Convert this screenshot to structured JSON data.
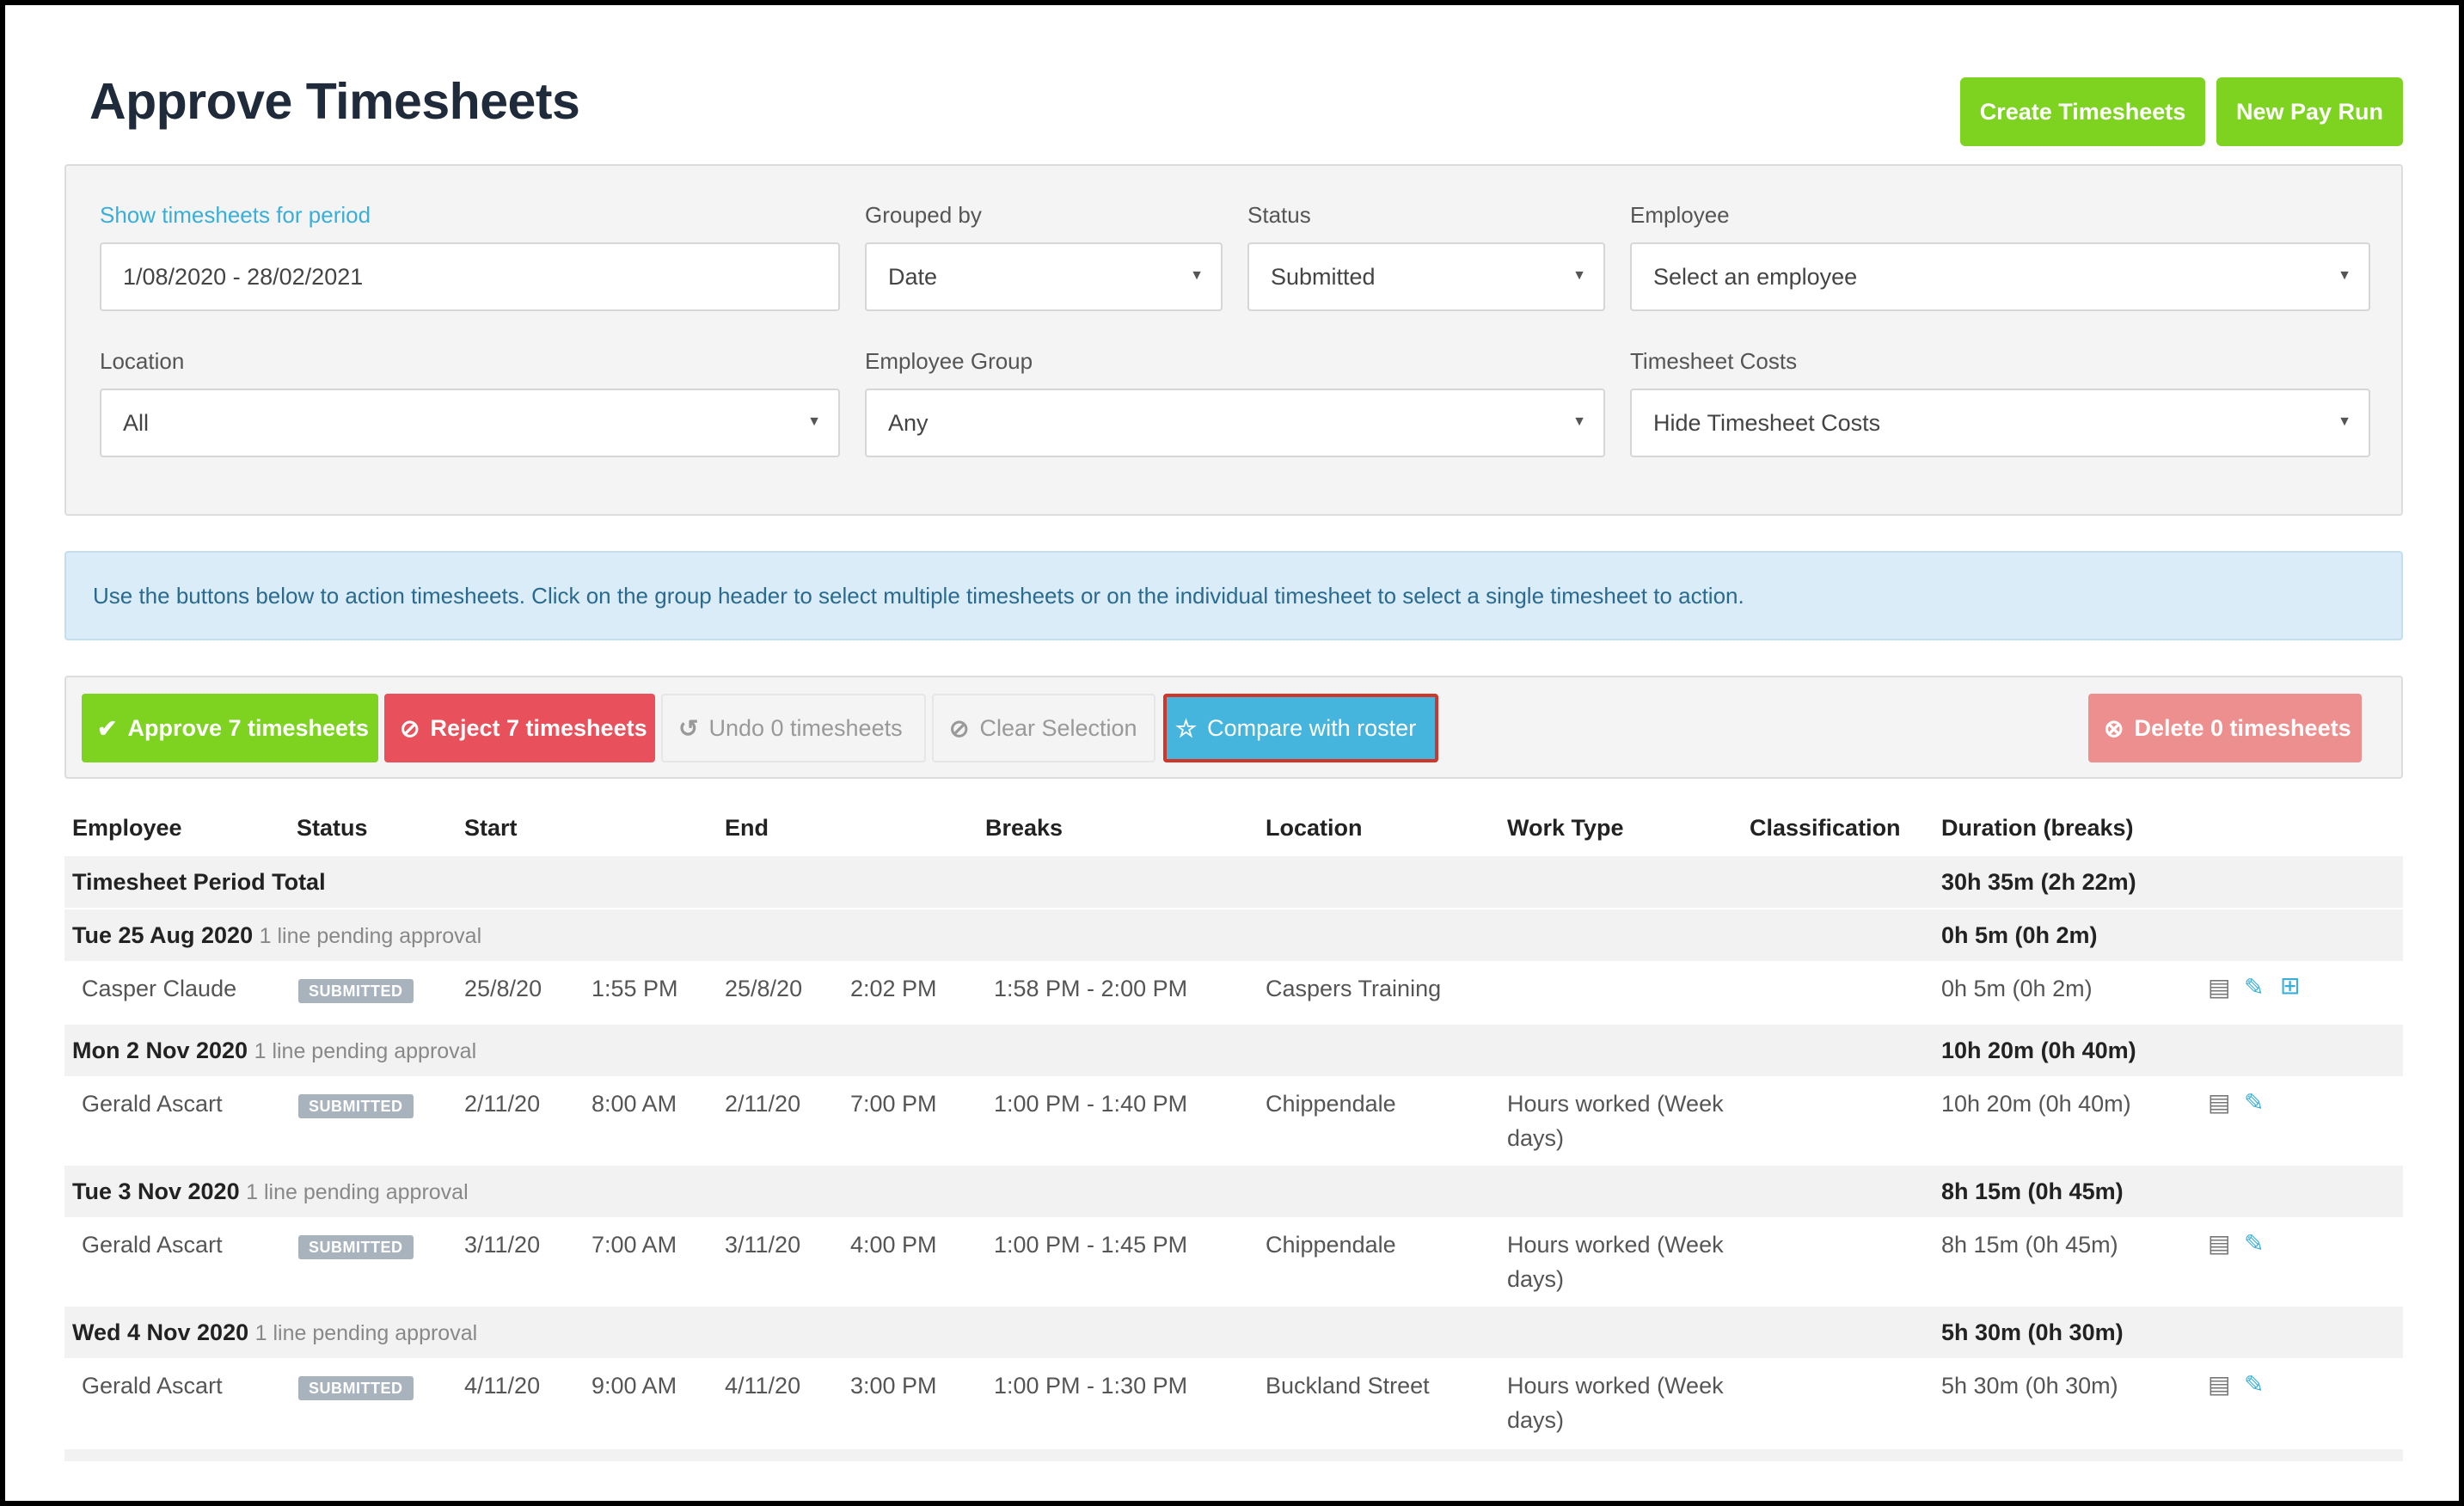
{
  "header": {
    "title": "Approve Timesheets",
    "create_label": "Create Timesheets",
    "new_pay_run_label": "New Pay Run"
  },
  "filters": {
    "period_label": "Show timesheets for period",
    "period_value": "1/08/2020 - 28/02/2021",
    "grouped_by_label": "Grouped by",
    "grouped_by_value": "Date",
    "status_label": "Status",
    "status_value": "Submitted",
    "employee_label": "Employee",
    "employee_value": "Select an employee",
    "location_label": "Location",
    "location_value": "All",
    "employee_group_label": "Employee Group",
    "employee_group_value": "Any",
    "costs_label": "Timesheet Costs",
    "costs_value": "Hide Timesheet Costs"
  },
  "info_text": "Use the buttons below to action timesheets. Click on the group header to select multiple timesheets or on the individual timesheet to select a single timesheet to action.",
  "actions": {
    "approve_label": "Approve 7 timesheets",
    "reject_label": "Reject 7 timesheets",
    "undo_label": "Undo 0 timesheets",
    "clear_label": "Clear Selection",
    "compare_label": "Compare with roster",
    "delete_label": "Delete 0 timesheets"
  },
  "columns": {
    "employee": "Employee",
    "status": "Status",
    "start": "Start",
    "end": "End",
    "breaks": "Breaks",
    "location": "Location",
    "work_type": "Work Type",
    "classification": "Classification",
    "duration": "Duration (breaks)"
  },
  "period_total": {
    "label": "Timesheet Period Total",
    "duration": "30h 35m (2h 22m)"
  },
  "groups": [
    {
      "date": "Tue 25 Aug 2020",
      "pending": "1 line pending approval",
      "duration": "0h 5m (0h 2m)",
      "rows": [
        {
          "employee": "Casper Claude",
          "status": "SUBMITTED",
          "start_date": "25/8/20",
          "start_time": "1:55 PM",
          "end_date": "25/8/20",
          "end_time": "2:02 PM",
          "breaks": "1:58 PM - 2:00 PM",
          "location": "Caspers Training",
          "work_type_1": "",
          "work_type_2": "",
          "duration": "0h 5m (0h 2m)"
        }
      ]
    },
    {
      "date": "Mon 2 Nov 2020",
      "pending": "1 line pending approval",
      "duration": "10h 20m (0h 40m)",
      "rows": [
        {
          "employee": "Gerald Ascart",
          "status": "SUBMITTED",
          "start_date": "2/11/20",
          "start_time": "8:00 AM",
          "end_date": "2/11/20",
          "end_time": "7:00 PM",
          "breaks": "1:00 PM - 1:40 PM",
          "location": "Chippendale",
          "work_type_1": "Hours worked (Week",
          "work_type_2": "days)",
          "duration": "10h 20m (0h 40m)"
        }
      ]
    },
    {
      "date": "Tue 3 Nov 2020",
      "pending": "1 line pending approval",
      "duration": "8h 15m (0h 45m)",
      "rows": [
        {
          "employee": "Gerald Ascart",
          "status": "SUBMITTED",
          "start_date": "3/11/20",
          "start_time": "7:00 AM",
          "end_date": "3/11/20",
          "end_time": "4:00 PM",
          "breaks": "1:00 PM - 1:45 PM",
          "location": "Chippendale",
          "work_type_1": "Hours worked (Week",
          "work_type_2": "days)",
          "duration": "8h 15m (0h 45m)"
        }
      ]
    },
    {
      "date": "Wed 4 Nov 2020",
      "pending": "1 line pending approval",
      "duration": "5h 30m (0h 30m)",
      "rows": [
        {
          "employee": "Gerald Ascart",
          "status": "SUBMITTED",
          "start_date": "4/11/20",
          "start_time": "9:00 AM",
          "end_date": "4/11/20",
          "end_time": "3:00 PM",
          "breaks": "1:00 PM - 1:30 PM",
          "location": "Buckland Street",
          "work_type_1": "Hours worked (Week",
          "work_type_2": "days)",
          "duration": "5h 30m (0h 30m)"
        }
      ]
    }
  ],
  "icons": {
    "check": "check-circle-icon",
    "reject": "ban-icon",
    "undo": "undo-icon",
    "clear": "ban-icon",
    "compare": "star-icon",
    "delete": "times-circle-icon",
    "notes": "notes-icon",
    "edit": "pencil-icon",
    "roster": "roster-compare-icon"
  },
  "colors": {
    "green": "#7ed321",
    "red": "#e8505b",
    "blue": "#45b5dd",
    "light_red": "#ee8f8f",
    "highlight": "#d0362a"
  }
}
